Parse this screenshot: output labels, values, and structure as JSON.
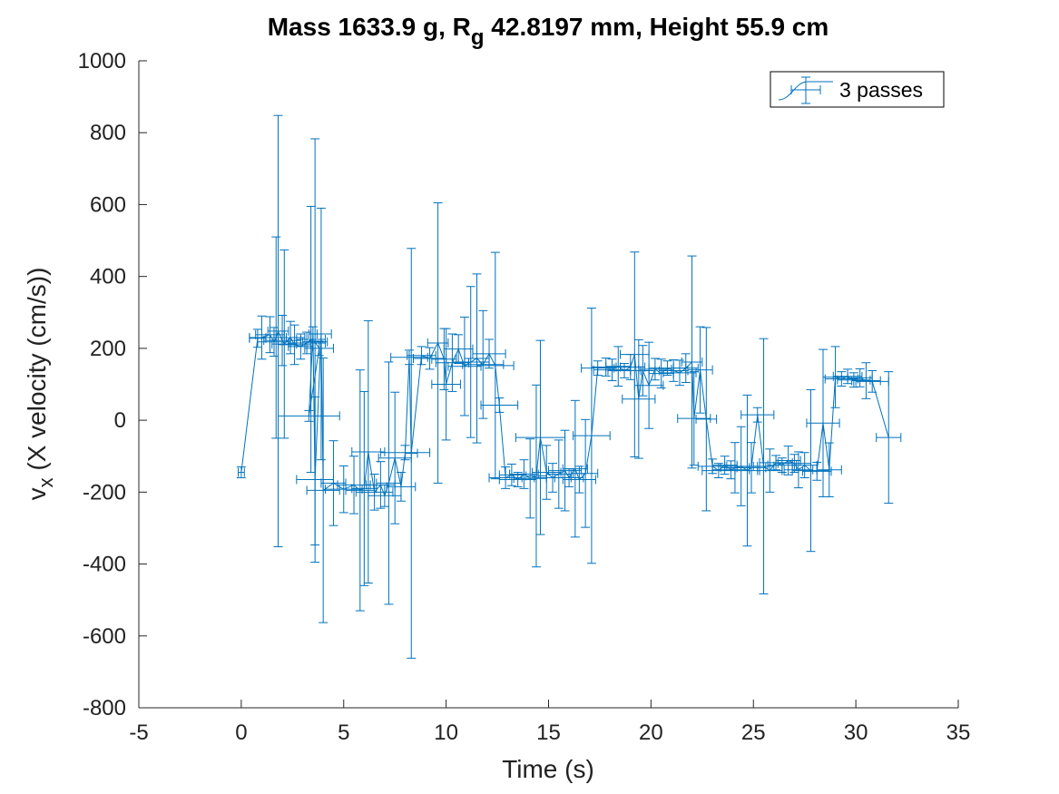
{
  "chart_data": {
    "type": "scatter",
    "title": {
      "prefix": "Mass 1633.9 g, R",
      "subscript": "g",
      "suffix": " 42.8197 mm,  Height 55.9 cm"
    },
    "xlabel": "Time (s)",
    "ylabel": {
      "main": "v",
      "subscript": "x",
      "rest": " (X velocity (cm/s))"
    },
    "xlim": [
      -5,
      35
    ],
    "ylim": [
      -800,
      1000
    ],
    "xticks": [
      -5,
      0,
      5,
      10,
      15,
      20,
      25,
      30,
      35
    ],
    "xtick_labels": [
      "-5",
      "0",
      "5",
      "10",
      "15",
      "20",
      "25",
      "30",
      "35"
    ],
    "yticks": [
      -800,
      -600,
      -400,
      -200,
      0,
      200,
      400,
      600,
      800,
      1000
    ],
    "ytick_labels": [
      "-800",
      "-600",
      "-400",
      "-200",
      "0",
      "200",
      "400",
      "600",
      "800",
      "1000"
    ],
    "grid": false,
    "legend_position": "top-right",
    "series": [
      {
        "name": "3 passes",
        "color": "#0072BD",
        "points": [
          {
            "x": 0.0,
            "y": -145,
            "xerr": 0.15,
            "yerr": 15
          },
          {
            "x": 0.8,
            "y": 228,
            "xerr": 0.4,
            "yerr": 25
          },
          {
            "x": 1.0,
            "y": 230,
            "xerr": 0.6,
            "yerr": 60
          },
          {
            "x": 1.4,
            "y": 238,
            "xerr": 0.7,
            "yerr": 50
          },
          {
            "x": 1.6,
            "y": 218,
            "xerr": 0.8,
            "yerr": 40
          },
          {
            "x": 1.7,
            "y": 230,
            "xerr": 0.5,
            "yerr": 280
          },
          {
            "x": 1.8,
            "y": 248,
            "xerr": 0.5,
            "yerr": 600
          },
          {
            "x": 2.0,
            "y": 222,
            "xerr": 0.9,
            "yerr": 70
          },
          {
            "x": 2.1,
            "y": 212,
            "xerr": 0.6,
            "yerr": 262
          },
          {
            "x": 2.4,
            "y": 230,
            "xerr": 0.7,
            "yerr": 45
          },
          {
            "x": 2.6,
            "y": 210,
            "xerr": 0.8,
            "yerr": 55
          },
          {
            "x": 2.9,
            "y": 205,
            "xerr": 0.6,
            "yerr": 35
          },
          {
            "x": 3.2,
            "y": 215,
            "xerr": 0.9,
            "yerr": 30
          },
          {
            "x": 3.4,
            "y": 225,
            "xerr": 0.7,
            "yerr": 370
          },
          {
            "x": 3.6,
            "y": 218,
            "xerr": 0.6,
            "yerr": 565
          },
          {
            "x": 3.8,
            "y": 200,
            "xerr": 0.7,
            "yerr": 20
          },
          {
            "x": 3.3,
            "y": 12,
            "xerr": 1.5,
            "yerr": 15
          },
          {
            "x": 3.5,
            "y": 240,
            "xerr": 0.2,
            "yerr": 20
          },
          {
            "x": 3.6,
            "y": -165,
            "xerr": 0.9,
            "yerr": 230
          },
          {
            "x": 3.9,
            "y": 240,
            "xerr": 0.5,
            "yerr": 350
          },
          {
            "x": 4.0,
            "y": -195,
            "xerr": 0.8,
            "yerr": 368
          },
          {
            "x": 4.5,
            "y": -175,
            "xerr": 0.6,
            "yerr": 118
          },
          {
            "x": 5.0,
            "y": -192,
            "xerr": 0.9,
            "yerr": 65
          },
          {
            "x": 5.5,
            "y": -180,
            "xerr": 0.8,
            "yerr": 80
          },
          {
            "x": 5.8,
            "y": -195,
            "xerr": 0.7,
            "yerr": 335
          },
          {
            "x": 6.0,
            "y": -190,
            "xerr": 0.6,
            "yerr": 270
          },
          {
            "x": 6.2,
            "y": -88,
            "xerr": 0.8,
            "yerr": 365
          },
          {
            "x": 6.5,
            "y": -200,
            "xerr": 0.9,
            "yerr": 50
          },
          {
            "x": 6.8,
            "y": -180,
            "xerr": 0.7,
            "yerr": 65
          },
          {
            "x": 7.0,
            "y": -210,
            "xerr": 0.8,
            "yerr": 30
          },
          {
            "x": 7.2,
            "y": -175,
            "xerr": 0.6,
            "yerr": 337
          },
          {
            "x": 7.5,
            "y": -105,
            "xerr": 0.8,
            "yerr": 183
          },
          {
            "x": 7.8,
            "y": -185,
            "xerr": 0.7,
            "yerr": 40
          },
          {
            "x": 8.0,
            "y": -90,
            "xerr": 1.2,
            "yerr": 20
          },
          {
            "x": 8.2,
            "y": 175,
            "xerr": 0.9,
            "yerr": 20
          },
          {
            "x": 8.3,
            "y": -92,
            "xerr": 0.3,
            "yerr": 570
          },
          {
            "x": 8.8,
            "y": 180,
            "xerr": 0.7,
            "yerr": 25
          },
          {
            "x": 9.2,
            "y": 172,
            "xerr": 0.8,
            "yerr": 30
          },
          {
            "x": 9.6,
            "y": 215,
            "xerr": 0.5,
            "yerr": 390
          },
          {
            "x": 9.9,
            "y": 170,
            "xerr": 0.6,
            "yerr": 85
          },
          {
            "x": 10.0,
            "y": 100,
            "xerr": 0.7,
            "yerr": 155
          },
          {
            "x": 10.3,
            "y": 160,
            "xerr": 0.8,
            "yerr": 80
          },
          {
            "x": 10.6,
            "y": 198,
            "xerr": 0.7,
            "yerr": 40
          },
          {
            "x": 10.9,
            "y": 150,
            "xerr": 0.8,
            "yerr": 137
          },
          {
            "x": 11.2,
            "y": 162,
            "xerr": 0.9,
            "yerr": 210
          },
          {
            "x": 11.5,
            "y": 172,
            "xerr": 0.6,
            "yerr": 235
          },
          {
            "x": 11.8,
            "y": 155,
            "xerr": 1.0,
            "yerr": 150
          },
          {
            "x": 12.1,
            "y": 185,
            "xerr": 0.8,
            "yerr": 40
          },
          {
            "x": 12.4,
            "y": 152,
            "xerr": 0.9,
            "yerr": 315
          },
          {
            "x": 12.6,
            "y": 42,
            "xerr": 0.9,
            "yerr": 20
          },
          {
            "x": 12.9,
            "y": -160,
            "xerr": 0.8,
            "yerr": 30
          },
          {
            "x": 13.2,
            "y": -152,
            "xerr": 0.6,
            "yerr": 30
          },
          {
            "x": 13.5,
            "y": -165,
            "xerr": 0.9,
            "yerr": 20
          },
          {
            "x": 13.8,
            "y": -150,
            "xerr": 0.7,
            "yerr": 40
          },
          {
            "x": 14.1,
            "y": -162,
            "xerr": 0.8,
            "yerr": 110
          },
          {
            "x": 14.4,
            "y": -155,
            "xerr": 0.5,
            "yerr": 253
          },
          {
            "x": 14.6,
            "y": -48,
            "xerr": 1.2,
            "yerr": 270
          },
          {
            "x": 14.9,
            "y": -145,
            "xerr": 0.7,
            "yerr": 75
          },
          {
            "x": 15.2,
            "y": -160,
            "xerr": 0.9,
            "yerr": 40
          },
          {
            "x": 15.5,
            "y": -150,
            "xerr": 0.6,
            "yerr": 95
          },
          {
            "x": 15.8,
            "y": -140,
            "xerr": 0.8,
            "yerr": 112
          },
          {
            "x": 16.0,
            "y": -160,
            "xerr": 0.7,
            "yerr": 25
          },
          {
            "x": 16.3,
            "y": -135,
            "xerr": 0.6,
            "yerr": 190
          },
          {
            "x": 16.5,
            "y": -165,
            "xerr": 0.8,
            "yerr": 37
          },
          {
            "x": 16.8,
            "y": -148,
            "xerr": 0.6,
            "yerr": 150
          },
          {
            "x": 17.1,
            "y": -43,
            "xerr": 0.9,
            "yerr": 355
          },
          {
            "x": 17.4,
            "y": 145,
            "xerr": 0.8,
            "yerr": 20
          },
          {
            "x": 17.8,
            "y": 148,
            "xerr": 0.7,
            "yerr": 25
          },
          {
            "x": 18.1,
            "y": 140,
            "xerr": 0.9,
            "yerr": 30
          },
          {
            "x": 18.4,
            "y": 150,
            "xerr": 0.6,
            "yerr": 55
          },
          {
            "x": 18.7,
            "y": 138,
            "xerr": 0.8,
            "yerr": 20
          },
          {
            "x": 19.0,
            "y": 148,
            "xerr": 0.7,
            "yerr": 35
          },
          {
            "x": 19.2,
            "y": 183,
            "xerr": 0.7,
            "yerr": 285
          },
          {
            "x": 19.4,
            "y": 59,
            "xerr": 0.8,
            "yerr": 165
          },
          {
            "x": 19.6,
            "y": 138,
            "xerr": 0.6,
            "yerr": 70
          },
          {
            "x": 19.9,
            "y": 97,
            "xerr": 0.7,
            "yerr": 120
          },
          {
            "x": 20.2,
            "y": 142,
            "xerr": 0.8,
            "yerr": 30
          },
          {
            "x": 20.5,
            "y": 130,
            "xerr": 0.6,
            "yerr": 40
          },
          {
            "x": 20.8,
            "y": 145,
            "xerr": 0.9,
            "yerr": 20
          },
          {
            "x": 21.1,
            "y": 138,
            "xerr": 0.7,
            "yerr": 30
          },
          {
            "x": 21.4,
            "y": 132,
            "xerr": 0.8,
            "yerr": 35
          },
          {
            "x": 21.7,
            "y": 145,
            "xerr": 0.6,
            "yerr": 40
          },
          {
            "x": 22.0,
            "y": 162,
            "xerr": 0.5,
            "yerr": 295
          },
          {
            "x": 22.1,
            "y": 5,
            "xerr": 0.8,
            "yerr": 130
          },
          {
            "x": 22.4,
            "y": 140,
            "xerr": 0.6,
            "yerr": 120
          },
          {
            "x": 22.7,
            "y": 3,
            "xerr": 0.5,
            "yerr": 255
          },
          {
            "x": 23.0,
            "y": -128,
            "xerr": 0.7,
            "yerr": 20
          },
          {
            "x": 23.3,
            "y": -140,
            "xerr": 0.8,
            "yerr": 20
          },
          {
            "x": 23.6,
            "y": -125,
            "xerr": 0.6,
            "yerr": 25
          },
          {
            "x": 23.9,
            "y": -138,
            "xerr": 0.9,
            "yerr": 25
          },
          {
            "x": 24.1,
            "y": -132,
            "xerr": 0.7,
            "yerr": 70
          },
          {
            "x": 24.4,
            "y": -128,
            "xerr": 0.8,
            "yerr": 110
          },
          {
            "x": 24.7,
            "y": -140,
            "xerr": 0.6,
            "yerr": 210
          },
          {
            "x": 24.9,
            "y": -132,
            "xerr": 0.7,
            "yerr": 70
          },
          {
            "x": 25.2,
            "y": 15,
            "xerr": 0.8,
            "yerr": 20
          },
          {
            "x": 25.5,
            "y": -128,
            "xerr": 0.5,
            "yerr": 355
          },
          {
            "x": 25.8,
            "y": -140,
            "xerr": 0.6,
            "yerr": 60
          },
          {
            "x": 26.1,
            "y": -118,
            "xerr": 0.8,
            "yerr": 20
          },
          {
            "x": 26.4,
            "y": -125,
            "xerr": 0.7,
            "yerr": 20
          },
          {
            "x": 26.7,
            "y": -112,
            "xerr": 0.6,
            "yerr": 40
          },
          {
            "x": 27.0,
            "y": -120,
            "xerr": 0.8,
            "yerr": 25
          },
          {
            "x": 27.2,
            "y": -138,
            "xerr": 0.7,
            "yerr": 50
          },
          {
            "x": 27.5,
            "y": -125,
            "xerr": 0.6,
            "yerr": 35
          },
          {
            "x": 27.8,
            "y": -140,
            "xerr": 0.9,
            "yerr": 225
          },
          {
            "x": 28.1,
            "y": -142,
            "xerr": 0.7,
            "yerr": 25
          },
          {
            "x": 28.4,
            "y": -8,
            "xerr": 0.8,
            "yerr": 205
          },
          {
            "x": 28.7,
            "y": -138,
            "xerr": 0.6,
            "yerr": 75
          },
          {
            "x": 29.0,
            "y": 120,
            "xerr": 0.6,
            "yerr": 85
          },
          {
            "x": 29.3,
            "y": 115,
            "xerr": 0.8,
            "yerr": 20
          },
          {
            "x": 29.6,
            "y": 122,
            "xerr": 0.7,
            "yerr": 20
          },
          {
            "x": 29.9,
            "y": 112,
            "xerr": 0.8,
            "yerr": 20
          },
          {
            "x": 30.2,
            "y": 118,
            "xerr": 0.6,
            "yerr": 25
          },
          {
            "x": 30.5,
            "y": 110,
            "xerr": 0.7,
            "yerr": 50
          },
          {
            "x": 30.8,
            "y": 108,
            "xerr": 0.8,
            "yerr": 30
          },
          {
            "x": 31.6,
            "y": -48,
            "xerr": 0.6,
            "yerr": 183
          }
        ]
      }
    ]
  }
}
